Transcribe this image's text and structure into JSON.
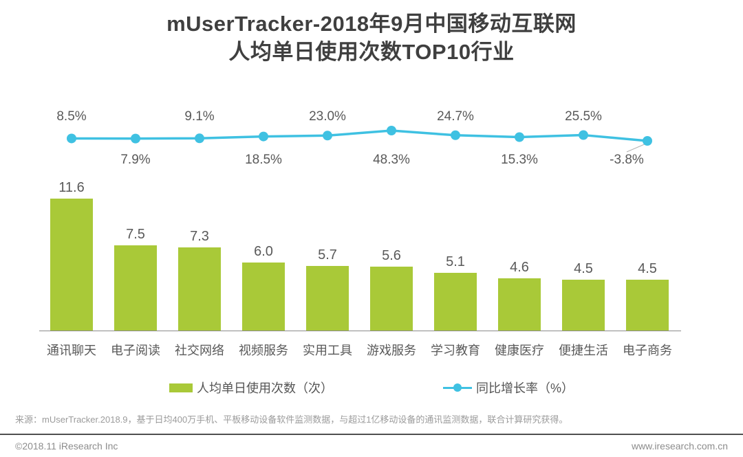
{
  "title": {
    "line1": "mUserTracker-2018年9月中国移动互联网",
    "line2": "人均单日使用次数TOP10行业"
  },
  "legend": {
    "bars_label": "人均单日使用次数（次）",
    "line_label": "同比增长率（%）"
  },
  "source_note": "来源：mUserTracker.2018.9，基于日均400万手机、平板移动设备软件监测数据，与超过1亿移动设备的通讯监测数据，联合计算研究获得。",
  "footer": {
    "copyright": "©2018.11 iResearch Inc",
    "website": "www.iresearch.com.cn"
  },
  "colors": {
    "bar": "#a9c938",
    "line": "#3fc1e2",
    "title_text": "#3f3f3f",
    "label_text": "#595959",
    "source_text": "#9b9b9b",
    "footer_text": "#8c8c8c",
    "axis": "#8a8a8a"
  },
  "chart_data": {
    "type": "bar",
    "title": "mUserTracker-2018年9月中国移动互联网人均单日使用次数TOP10行业",
    "categories": [
      "通讯聊天",
      "电子阅读",
      "社交网络",
      "视频服务",
      "实用工具",
      "游戏服务",
      "学习教育",
      "健康医疗",
      "便捷生活",
      "电子商务"
    ],
    "series": [
      {
        "name": "人均单日使用次数（次）",
        "type": "bar",
        "values": [
          11.6,
          7.5,
          7.3,
          6.0,
          5.7,
          5.6,
          5.1,
          4.6,
          4.5,
          4.5
        ],
        "labels": [
          "11.6",
          "7.5",
          "7.3",
          "6.0",
          "5.7",
          "5.6",
          "5.1",
          "4.6",
          "4.5",
          "4.5"
        ]
      },
      {
        "name": "同比增长率（%）",
        "type": "line",
        "values": [
          8.5,
          7.9,
          9.1,
          18.5,
          23.0,
          48.3,
          24.7,
          15.3,
          25.5,
          -3.8
        ],
        "labels": [
          "8.5%",
          "7.9%",
          "9.1%",
          "18.5%",
          "23.0%",
          "48.3%",
          "24.7%",
          "15.3%",
          "25.5%",
          "-3.8%"
        ]
      }
    ],
    "xlabel": "",
    "ylabel": "",
    "ylim_bar": [
      0,
      11.6
    ],
    "grid": false,
    "legend_position": "bottom",
    "data_labels": true
  }
}
